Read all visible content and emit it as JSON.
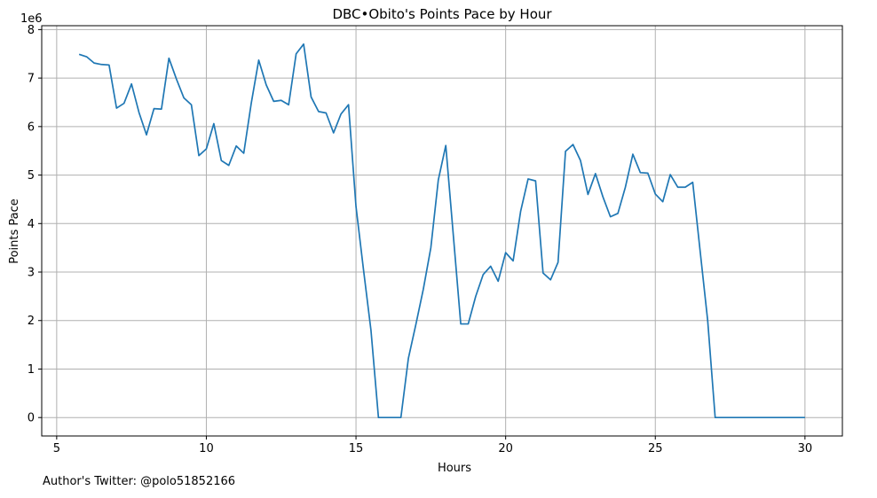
{
  "chart_data": {
    "type": "line",
    "title": "DBC•Obito's Points Pace by Hour",
    "xlabel": "Hours",
    "ylabel": "Points Pace",
    "y_offset_label": "1e6",
    "xlim": [
      4.5,
      31.25
    ],
    "ylim": [
      -0.38,
      8.08
    ],
    "x_ticks": [
      5,
      10,
      15,
      20,
      25,
      30
    ],
    "y_ticks": [
      0,
      1,
      2,
      3,
      4,
      5,
      6,
      7,
      8
    ],
    "grid": true,
    "line_color": "#1f77b4",
    "series": [
      {
        "x": [
          5.75,
          6.0,
          6.25,
          6.5,
          6.75,
          7.0,
          7.25,
          7.5,
          7.75,
          8.0,
          8.25,
          8.5,
          8.75,
          9.0,
          9.25,
          9.5,
          9.75,
          10.0,
          10.25,
          10.5,
          10.75,
          11.0,
          11.25,
          11.5,
          11.75,
          12.0,
          12.25,
          12.5,
          12.75,
          13.0,
          13.25,
          13.5,
          13.75,
          14.0,
          14.25,
          14.5,
          14.75,
          15.0,
          15.25,
          15.5,
          15.75,
          16.0,
          16.25,
          16.5,
          16.75,
          17.0,
          17.25,
          17.5,
          17.75,
          18.0,
          18.25,
          18.5,
          18.75,
          19.0,
          19.25,
          19.5,
          19.75,
          20.0,
          20.25,
          20.5,
          20.75,
          21.0,
          21.25,
          21.5,
          21.75,
          22.0,
          22.25,
          22.5,
          22.75,
          23.0,
          23.25,
          23.5,
          23.75,
          24.0,
          24.25,
          24.5,
          24.75,
          25.0,
          25.25,
          25.5,
          25.75,
          26.0,
          26.25,
          26.5,
          26.75,
          27.0,
          27.25,
          27.5,
          27.75,
          28.0,
          28.25,
          28.5,
          28.75,
          29.0,
          29.25,
          29.5,
          29.75,
          30.0
        ],
        "y": [
          7.49,
          7.44,
          7.31,
          7.28,
          7.27,
          6.38,
          6.48,
          6.88,
          6.29,
          5.83,
          6.37,
          6.36,
          7.41,
          6.98,
          6.59,
          6.45,
          5.4,
          5.54,
          6.06,
          5.3,
          5.2,
          5.6,
          5.45,
          6.48,
          7.37,
          6.86,
          6.52,
          6.54,
          6.45,
          7.5,
          7.7,
          6.61,
          6.31,
          6.28,
          5.87,
          6.26,
          6.45,
          4.35,
          3.05,
          1.8,
          0.0,
          0.0,
          0.0,
          0.0,
          1.22,
          1.92,
          2.65,
          3.5,
          4.9,
          5.61,
          3.77,
          1.93,
          1.93,
          2.5,
          2.95,
          3.12,
          2.81,
          3.4,
          3.23,
          4.25,
          4.92,
          4.88,
          2.98,
          2.84,
          3.2,
          5.49,
          5.63,
          5.3,
          4.6,
          5.03,
          4.55,
          4.14,
          4.21,
          4.75,
          5.43,
          5.05,
          5.04,
          4.61,
          4.45,
          5.01,
          4.75,
          4.75,
          4.85,
          3.42,
          2.0,
          0.0,
          0.0,
          0.0,
          0.0,
          0.0,
          0.0,
          0.0,
          0.0,
          0.0,
          0.0,
          0.0,
          0.0,
          0.0
        ]
      }
    ]
  },
  "footer": {
    "text": "Author's Twitter: @polo51852166"
  }
}
